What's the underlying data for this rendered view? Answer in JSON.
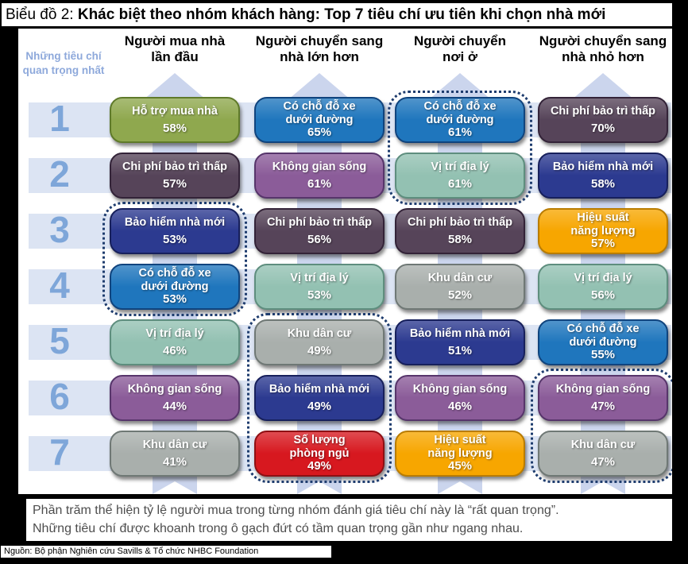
{
  "title": {
    "prefix": "Biểu đồ 2: ",
    "main": "Khác biệt theo nhóm khách hàng: Top 7 tiêu chí ưu tiên khi chọn nhà mới"
  },
  "left_caption": "Những tiêu chí quan trọng nhất",
  "ranks": [
    "1",
    "2",
    "3",
    "4",
    "5",
    "6",
    "7"
  ],
  "criteria_colors": {
    "Hỗ trợ mua nhà": {
      "bg": "#8FA84E",
      "border": "#5F7A2A"
    },
    "Có chỗ đỗ xe dưới đường": {
      "bg": "#1F76BD",
      "border": "#10447E"
    },
    "Chi phí bảo trì thấp": {
      "bg": "#564459",
      "border": "#332338"
    },
    "Không gian sống": {
      "bg": "#8B5C99",
      "border": "#57356B"
    },
    "Bảo hiểm nhà mới": {
      "bg": "#2C3A90",
      "border": "#17205C"
    },
    "Vị trí địa lý": {
      "bg": "#93C1B2",
      "border": "#5E8E7E"
    },
    "Khu dân cư": {
      "bg": "#A9AFAC",
      "border": "#6F7875"
    },
    "Hiệu suất năng lượng": {
      "bg": "#F7A600",
      "border": "#B97C00"
    },
    "Số lượng phòng ngủ": {
      "bg": "#D7181F",
      "border": "#8E1014"
    }
  },
  "accent_colors": {
    "rank_number": "#7EA6D9",
    "axis_caption": "#8EA9DB",
    "row_band": "#DCE4F3",
    "column_band": "#C9D4EC",
    "group_outline": "#1E3C6E"
  },
  "chart_data": {
    "type": "table",
    "title": "Khác biệt theo nhóm khách hàng: Top 7 tiêu chí ưu tiên khi chọn nhà mới",
    "row_labels": [
      "1",
      "2",
      "3",
      "4",
      "5",
      "6",
      "7"
    ],
    "unit": "% người mua đánh giá tiêu chí là \"rất quan trọng\"",
    "series": [
      {
        "name": "Người mua nhà lần đầu",
        "name_lines": [
          "Người mua nhà",
          "lần đầu"
        ],
        "items": [
          {
            "label": "Hỗ trợ mua nhà",
            "pct": "58%",
            "value": 58
          },
          {
            "label": "Chi phí bảo trì thấp",
            "pct": "57%",
            "value": 57
          },
          {
            "label": "Bảo hiểm nhà mới",
            "pct": "53%",
            "value": 53
          },
          {
            "label": "Có chỗ đỗ xe dưới đường",
            "label_lines": [
              "Có chỗ đỗ xe",
              "dưới đường"
            ],
            "pct": "53%",
            "value": 53
          },
          {
            "label": "Vị trí địa lý",
            "pct": "46%",
            "value": 46
          },
          {
            "label": "Không gian sống",
            "pct": "44%",
            "value": 44
          },
          {
            "label": "Khu dân cư",
            "pct": "41%",
            "value": 41
          }
        ]
      },
      {
        "name": "Người chuyển sang nhà lớn hơn",
        "name_lines": [
          "Người chuyển sang",
          "nhà lớn hơn"
        ],
        "items": [
          {
            "label": "Có chỗ đỗ xe dưới đường",
            "label_lines": [
              "Có chỗ đỗ xe",
              "dưới đường"
            ],
            "pct": "65%",
            "value": 65
          },
          {
            "label": "Không gian sống",
            "pct": "61%",
            "value": 61
          },
          {
            "label": "Chi phí bảo trì thấp",
            "pct": "56%",
            "value": 56
          },
          {
            "label": "Vị trí địa lý",
            "pct": "53%",
            "value": 53
          },
          {
            "label": "Khu dân cư",
            "pct": "49%",
            "value": 49
          },
          {
            "label": "Bảo hiểm nhà mới",
            "pct": "49%",
            "value": 49
          },
          {
            "label": "Số lượng phòng ngủ",
            "label_lines": [
              "Số lượng",
              "phòng ngủ"
            ],
            "pct": "49%",
            "value": 49
          }
        ]
      },
      {
        "name": "Người chuyển nơi ở",
        "name_lines": [
          "Người chuyển",
          "nơi ở"
        ],
        "items": [
          {
            "label": "Có chỗ đỗ xe dưới đường",
            "label_lines": [
              "Có chỗ đỗ xe",
              "dưới đường"
            ],
            "pct": "61%",
            "value": 61
          },
          {
            "label": "Vị trí địa lý",
            "pct": "61%",
            "value": 61
          },
          {
            "label": "Chi phí bảo trì thấp",
            "pct": "58%",
            "value": 58
          },
          {
            "label": "Khu dân cư",
            "pct": "52%",
            "value": 52
          },
          {
            "label": "Bảo hiểm nhà mới",
            "pct": "51%",
            "value": 51
          },
          {
            "label": "Không gian sống",
            "pct": "46%",
            "value": 46
          },
          {
            "label": "Hiệu suất năng lượng",
            "label_lines": [
              "Hiệu suất",
              "năng lượng"
            ],
            "pct": "45%",
            "value": 45
          }
        ]
      },
      {
        "name": "Người chuyển sang nhà nhỏ hơn",
        "name_lines": [
          "Người chuyển sang",
          "nhà nhỏ hơn"
        ],
        "items": [
          {
            "label": "Chi phí bảo trì thấp",
            "pct": "70%",
            "value": 70
          },
          {
            "label": "Bảo hiểm nhà mới",
            "pct": "58%",
            "value": 58
          },
          {
            "label": "Hiệu suất năng lượng",
            "label_lines": [
              "Hiệu suất",
              "năng lượng"
            ],
            "pct": "57%",
            "value": 57
          },
          {
            "label": "Vị trí địa lý",
            "pct": "56%",
            "value": 56
          },
          {
            "label": "Có chỗ đỗ xe dưới đường",
            "label_lines": [
              "Có chỗ đỗ xe",
              "dưới đường"
            ],
            "pct": "55%",
            "value": 55
          },
          {
            "label": "Không gian sống",
            "pct": "47%",
            "value": 47
          },
          {
            "label": "Khu dân cư",
            "pct": "47%",
            "value": 47
          }
        ]
      }
    ],
    "equal_importance_groups": [
      {
        "column": "Người chuyển nơi ở",
        "column_index": 2,
        "ranks": [
          1,
          2
        ]
      },
      {
        "column": "Người mua nhà lần đầu",
        "column_index": 0,
        "ranks": [
          3,
          4
        ]
      },
      {
        "column": "Người chuyển sang nhà lớn hơn",
        "column_index": 1,
        "ranks": [
          5,
          6,
          7
        ]
      },
      {
        "column": "Người chuyển sang nhà nhỏ hơn",
        "column_index": 3,
        "ranks": [
          6,
          7
        ]
      }
    ]
  },
  "footnote": {
    "line1": "Phần trăm thể hiện tỷ lệ người mua trong từng nhóm đánh giá tiêu chí này là “rất quan trọng”.",
    "line2": "Những tiêu chí được khoanh trong ô gạch đứt có tầm quan trọng gần như ngang nhau."
  },
  "source": "Nguồn: Bộ phận Nghiên cứu Savills & Tổ chức NHBC Foundation"
}
